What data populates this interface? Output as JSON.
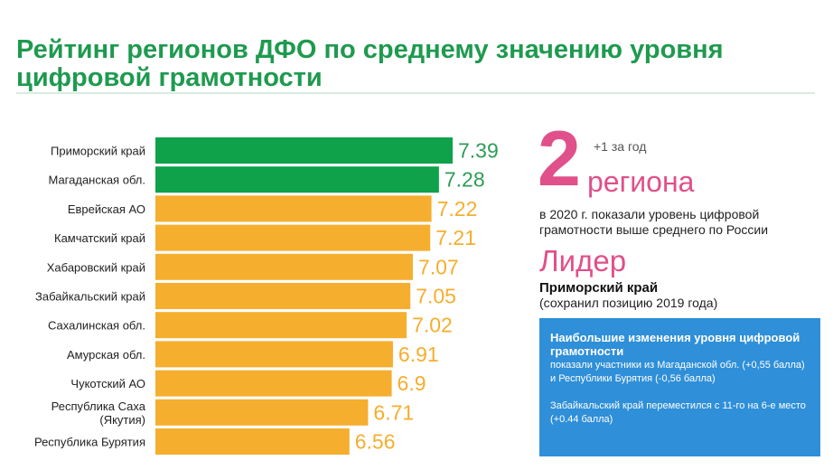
{
  "title": "Рейтинг регионов ДФО по среднему значению уровня цифровой грамотности",
  "chart_data": {
    "type": "bar",
    "orientation": "horizontal",
    "categories": [
      "Приморский край",
      "Магаданская обл.",
      "Еврейская АО",
      "Камчатский край",
      "Хабаровский край",
      "Забайкальский край",
      "Сахалинская обл.",
      "Амурская обл.",
      "Чукотский АО",
      "Республика Саха\n(Якутия)",
      "Республика Бурятия"
    ],
    "values": [
      7.39,
      7.28,
      7.22,
      7.21,
      7.07,
      7.05,
      7.02,
      6.91,
      6.9,
      6.71,
      6.56
    ],
    "value_labels": [
      "7.39",
      "7.28",
      "7.22",
      "7.21",
      "7.07",
      "7.05",
      "7.02",
      "6.91",
      "6.9",
      "6.71",
      "6.56"
    ],
    "highlighted_count": 2,
    "highlight_color": "#0fa24a",
    "bar_color": "#f5ae2e",
    "highlight_text_color": "#2e9c57",
    "label_text_color": "#f5ae2e",
    "xlim": [
      5.0,
      7.39
    ],
    "grid": false,
    "legend": "none"
  },
  "summary": {
    "big_number": "2",
    "regions_word": "региона",
    "plus_year": "+1 за год",
    "regions_desc": "в 2020 г. показали уровень цифровой грамотности выше среднего по России",
    "leader_title": "Лидер",
    "leader_name": "Приморский край",
    "leader_note": "(сохранил позицию 2019 года)"
  },
  "info_box": {
    "heading": "Наибольшие изменения уровня цифровой грамотности",
    "text1": "показали участники из Магаданской обл. (+0,55 балла) и Республики Бурятия (-0,56 балла)",
    "text2": "Забайкальский край переместился с 11-го на 6-е место (+0.44 балла)",
    "color": "#2f8fd8"
  },
  "colors": {
    "title": "#1e9a4f",
    "accent_pink": "#e0508a"
  }
}
